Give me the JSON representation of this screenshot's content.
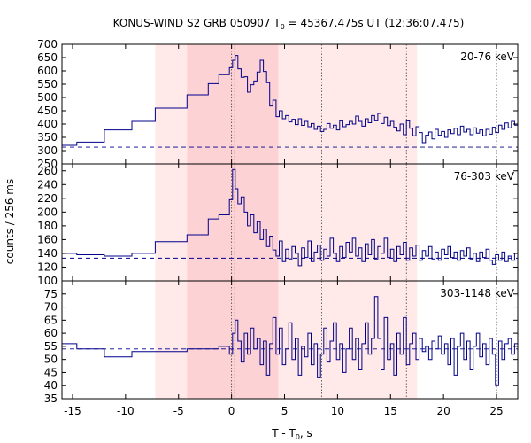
{
  "chart_data": {
    "type": "line",
    "title_main": "KONUS-WIND S2 GRB 050907 T",
    "title_sub": "0",
    "title_rest": " = 45367.475s UT (12:36:07.475)",
    "xlabel_main": "T - T",
    "xlabel_sub": "0",
    "xlabel_rest": ", s",
    "ylabel": "counts / 256 ms",
    "xlim": [
      -16,
      27
    ],
    "x_ticks": [
      -15,
      -10,
      -5,
      0,
      5,
      10,
      15,
      20,
      25
    ],
    "shading": {
      "light": [
        -7.2,
        17.5
      ],
      "dark": [
        -4.2,
        4.4
      ]
    },
    "dotted_vlines": [
      0.0,
      0.3,
      8.5,
      16.5,
      25.0
    ],
    "series_color": "#00008b",
    "panels": [
      {
        "label": "20-76 keV",
        "ylim": [
          250,
          700
        ],
        "y_ticks": [
          250,
          300,
          350,
          400,
          450,
          500,
          550,
          600,
          650,
          700
        ],
        "bg_level": 313,
        "steps": [
          [
            -16.0,
            320
          ],
          [
            -14.6,
            332
          ],
          [
            -12.0,
            378
          ],
          [
            -9.4,
            410
          ],
          [
            -7.2,
            460
          ],
          [
            -4.2,
            510
          ],
          [
            -2.2,
            552
          ],
          [
            -1.2,
            586
          ],
          [
            -0.2,
            612
          ],
          [
            0.1,
            640
          ],
          [
            0.35,
            658
          ],
          [
            0.6,
            608
          ],
          [
            0.9,
            576
          ],
          [
            1.2,
            578
          ],
          [
            1.5,
            520
          ],
          [
            1.8,
            548
          ],
          [
            2.1,
            562
          ],
          [
            2.4,
            596
          ],
          [
            2.7,
            640
          ],
          [
            3.0,
            598
          ],
          [
            3.3,
            556
          ],
          [
            3.6,
            468
          ],
          [
            3.9,
            490
          ],
          [
            4.2,
            428
          ],
          [
            4.5,
            450
          ],
          [
            4.8,
            420
          ],
          [
            5.1,
            432
          ],
          [
            5.4,
            408
          ],
          [
            5.7,
            418
          ],
          [
            6.0,
            398
          ],
          [
            6.3,
            420
          ],
          [
            6.6,
            395
          ],
          [
            6.9,
            410
          ],
          [
            7.2,
            390
          ],
          [
            7.5,
            402
          ],
          [
            7.8,
            380
          ],
          [
            8.1,
            392
          ],
          [
            8.4,
            372
          ],
          [
            8.7,
            380
          ],
          [
            9.0,
            402
          ],
          [
            9.3,
            384
          ],
          [
            9.6,
            396
          ],
          [
            9.9,
            378
          ],
          [
            10.2,
            412
          ],
          [
            10.5,
            390
          ],
          [
            10.8,
            398
          ],
          [
            11.1,
            410
          ],
          [
            11.4,
            400
          ],
          [
            11.7,
            430
          ],
          [
            12.0,
            410
          ],
          [
            12.3,
            392
          ],
          [
            12.6,
            420
          ],
          [
            12.9,
            405
          ],
          [
            13.2,
            432
          ],
          [
            13.5,
            412
          ],
          [
            13.8,
            440
          ],
          [
            14.1,
            402
          ],
          [
            14.4,
            426
          ],
          [
            14.7,
            394
          ],
          [
            15.0,
            410
          ],
          [
            15.3,
            388
          ],
          [
            15.6,
            374
          ],
          [
            15.9,
            400
          ],
          [
            16.2,
            360
          ],
          [
            16.5,
            412
          ],
          [
            16.8,
            384
          ],
          [
            17.1,
            356
          ],
          [
            17.4,
            390
          ],
          [
            17.7,
            368
          ],
          [
            18.0,
            330
          ],
          [
            18.3,
            358
          ],
          [
            18.6,
            370
          ],
          [
            18.9,
            344
          ],
          [
            19.2,
            380
          ],
          [
            19.5,
            358
          ],
          [
            19.8,
            372
          ],
          [
            20.1,
            350
          ],
          [
            20.4,
            378
          ],
          [
            20.7,
            364
          ],
          [
            21.0,
            384
          ],
          [
            21.3,
            360
          ],
          [
            21.6,
            392
          ],
          [
            21.9,
            370
          ],
          [
            22.2,
            380
          ],
          [
            22.5,
            360
          ],
          [
            22.8,
            386
          ],
          [
            23.1,
            366
          ],
          [
            23.4,
            378
          ],
          [
            23.7,
            356
          ],
          [
            24.0,
            380
          ],
          [
            24.3,
            362
          ],
          [
            24.6,
            388
          ],
          [
            24.9,
            368
          ],
          [
            25.2,
            396
          ],
          [
            25.5,
            380
          ],
          [
            25.8,
            404
          ],
          [
            26.1,
            386
          ],
          [
            26.4,
            410
          ],
          [
            26.7,
            396
          ],
          [
            27.0,
            396
          ]
        ]
      },
      {
        "label": "76-303 keV",
        "ylim": [
          100,
          270
        ],
        "y_ticks": [
          100,
          120,
          140,
          160,
          180,
          200,
          220,
          240,
          260
        ],
        "bg_level": 133,
        "steps": [
          [
            -16.0,
            140
          ],
          [
            -14.6,
            138
          ],
          [
            -12.0,
            136
          ],
          [
            -9.4,
            140
          ],
          [
            -7.2,
            157
          ],
          [
            -4.2,
            167
          ],
          [
            -2.2,
            190
          ],
          [
            -1.2,
            196
          ],
          [
            -0.2,
            218
          ],
          [
            0.1,
            262
          ],
          [
            0.35,
            234
          ],
          [
            0.6,
            212
          ],
          [
            0.9,
            222
          ],
          [
            1.2,
            200
          ],
          [
            1.5,
            180
          ],
          [
            1.8,
            196
          ],
          [
            2.1,
            170
          ],
          [
            2.4,
            186
          ],
          [
            2.7,
            160
          ],
          [
            3.0,
            175
          ],
          [
            3.3,
            150
          ],
          [
            3.6,
            165
          ],
          [
            3.9,
            145
          ],
          [
            4.2,
            136
          ],
          [
            4.5,
            158
          ],
          [
            4.8,
            128
          ],
          [
            5.1,
            146
          ],
          [
            5.4,
            132
          ],
          [
            5.7,
            150
          ],
          [
            6.0,
            140
          ],
          [
            6.3,
            122
          ],
          [
            6.6,
            148
          ],
          [
            6.9,
            134
          ],
          [
            7.2,
            158
          ],
          [
            7.5,
            128
          ],
          [
            7.8,
            142
          ],
          [
            8.1,
            152
          ],
          [
            8.4,
            130
          ],
          [
            8.7,
            146
          ],
          [
            9.0,
            136
          ],
          [
            9.3,
            162
          ],
          [
            9.6,
            140
          ],
          [
            9.9,
            128
          ],
          [
            10.2,
            150
          ],
          [
            10.5,
            134
          ],
          [
            10.8,
            156
          ],
          [
            11.1,
            142
          ],
          [
            11.4,
            162
          ],
          [
            11.7,
            136
          ],
          [
            12.0,
            148
          ],
          [
            12.3,
            128
          ],
          [
            12.6,
            154
          ],
          [
            12.9,
            138
          ],
          [
            13.2,
            160
          ],
          [
            13.5,
            132
          ],
          [
            13.8,
            150
          ],
          [
            14.1,
            140
          ],
          [
            14.4,
            162
          ],
          [
            14.7,
            134
          ],
          [
            15.0,
            146
          ],
          [
            15.3,
            128
          ],
          [
            15.6,
            150
          ],
          [
            15.9,
            138
          ],
          [
            16.2,
            156
          ],
          [
            16.5,
            130
          ],
          [
            16.8,
            148
          ],
          [
            17.1,
            136
          ],
          [
            17.4,
            152
          ],
          [
            17.7,
            130
          ],
          [
            18.0,
            144
          ],
          [
            18.3,
            136
          ],
          [
            18.6,
            150
          ],
          [
            18.9,
            132
          ],
          [
            19.2,
            142
          ],
          [
            19.5,
            130
          ],
          [
            19.8,
            146
          ],
          [
            20.1,
            138
          ],
          [
            20.4,
            150
          ],
          [
            20.7,
            134
          ],
          [
            21.0,
            142
          ],
          [
            21.3,
            130
          ],
          [
            21.6,
            144
          ],
          [
            21.9,
            136
          ],
          [
            22.2,
            148
          ],
          [
            22.5,
            132
          ],
          [
            22.8,
            140
          ],
          [
            23.1,
            128
          ],
          [
            23.4,
            142
          ],
          [
            23.7,
            134
          ],
          [
            24.0,
            146
          ],
          [
            24.3,
            130
          ],
          [
            24.6,
            124
          ],
          [
            24.9,
            138
          ],
          [
            25.2,
            130
          ],
          [
            25.5,
            142
          ],
          [
            25.8,
            128
          ],
          [
            26.1,
            136
          ],
          [
            26.4,
            130
          ],
          [
            26.7,
            140
          ],
          [
            27.0,
            140
          ]
        ]
      },
      {
        "label": "303-1148 keV",
        "ylim": [
          35,
          80
        ],
        "y_ticks": [
          35,
          40,
          45,
          50,
          55,
          60,
          65,
          70,
          75
        ],
        "bg_level": 54,
        "steps": [
          [
            -16.0,
            56
          ],
          [
            -14.6,
            54
          ],
          [
            -12.0,
            51
          ],
          [
            -9.4,
            53
          ],
          [
            -7.2,
            53
          ],
          [
            -4.2,
            54
          ],
          [
            -2.2,
            54
          ],
          [
            -1.2,
            55
          ],
          [
            -0.2,
            52
          ],
          [
            0.1,
            60
          ],
          [
            0.35,
            65
          ],
          [
            0.6,
            57
          ],
          [
            0.9,
            49
          ],
          [
            1.2,
            60
          ],
          [
            1.5,
            52
          ],
          [
            1.8,
            62
          ],
          [
            2.1,
            54
          ],
          [
            2.4,
            58
          ],
          [
            2.7,
            48
          ],
          [
            3.0,
            57
          ],
          [
            3.3,
            44
          ],
          [
            3.6,
            56
          ],
          [
            3.9,
            66
          ],
          [
            4.2,
            52
          ],
          [
            4.5,
            62
          ],
          [
            4.8,
            48
          ],
          [
            5.1,
            54
          ],
          [
            5.4,
            64
          ],
          [
            5.7,
            50
          ],
          [
            6.0,
            58
          ],
          [
            6.3,
            44
          ],
          [
            6.6,
            55
          ],
          [
            6.9,
            51
          ],
          [
            7.2,
            60
          ],
          [
            7.5,
            48
          ],
          [
            7.8,
            56
          ],
          [
            8.1,
            43
          ],
          [
            8.4,
            52
          ],
          [
            8.7,
            62
          ],
          [
            9.0,
            49
          ],
          [
            9.3,
            57
          ],
          [
            9.6,
            64
          ],
          [
            9.9,
            50
          ],
          [
            10.2,
            56
          ],
          [
            10.5,
            45
          ],
          [
            10.8,
            54
          ],
          [
            11.1,
            62
          ],
          [
            11.4,
            50
          ],
          [
            11.7,
            58
          ],
          [
            12.0,
            46
          ],
          [
            12.3,
            56
          ],
          [
            12.6,
            64
          ],
          [
            12.9,
            52
          ],
          [
            13.2,
            58
          ],
          [
            13.5,
            74
          ],
          [
            13.8,
            58
          ],
          [
            14.1,
            46
          ],
          [
            14.4,
            66
          ],
          [
            14.7,
            50
          ],
          [
            15.0,
            56
          ],
          [
            15.3,
            44
          ],
          [
            15.6,
            60
          ],
          [
            15.9,
            52
          ],
          [
            16.2,
            66
          ],
          [
            16.5,
            48
          ],
          [
            16.8,
            56
          ],
          [
            17.1,
            60
          ],
          [
            17.4,
            50
          ],
          [
            17.7,
            58
          ],
          [
            18.0,
            53
          ],
          [
            18.3,
            55
          ],
          [
            18.6,
            50
          ],
          [
            18.9,
            57
          ],
          [
            19.2,
            54
          ],
          [
            19.5,
            59
          ],
          [
            19.8,
            52
          ],
          [
            20.1,
            56
          ],
          [
            20.4,
            48
          ],
          [
            20.7,
            58
          ],
          [
            21.0,
            44
          ],
          [
            21.3,
            55
          ],
          [
            21.6,
            60
          ],
          [
            21.9,
            50
          ],
          [
            22.2,
            57
          ],
          [
            22.5,
            46
          ],
          [
            22.8,
            55
          ],
          [
            23.1,
            60
          ],
          [
            23.4,
            51
          ],
          [
            23.7,
            56
          ],
          [
            24.0,
            48
          ],
          [
            24.3,
            58
          ],
          [
            24.6,
            52
          ],
          [
            24.9,
            40
          ],
          [
            25.2,
            57
          ],
          [
            25.5,
            50
          ],
          [
            25.8,
            56
          ],
          [
            26.1,
            58
          ],
          [
            26.4,
            52
          ],
          [
            26.7,
            56
          ],
          [
            27.0,
            56
          ]
        ]
      }
    ]
  }
}
